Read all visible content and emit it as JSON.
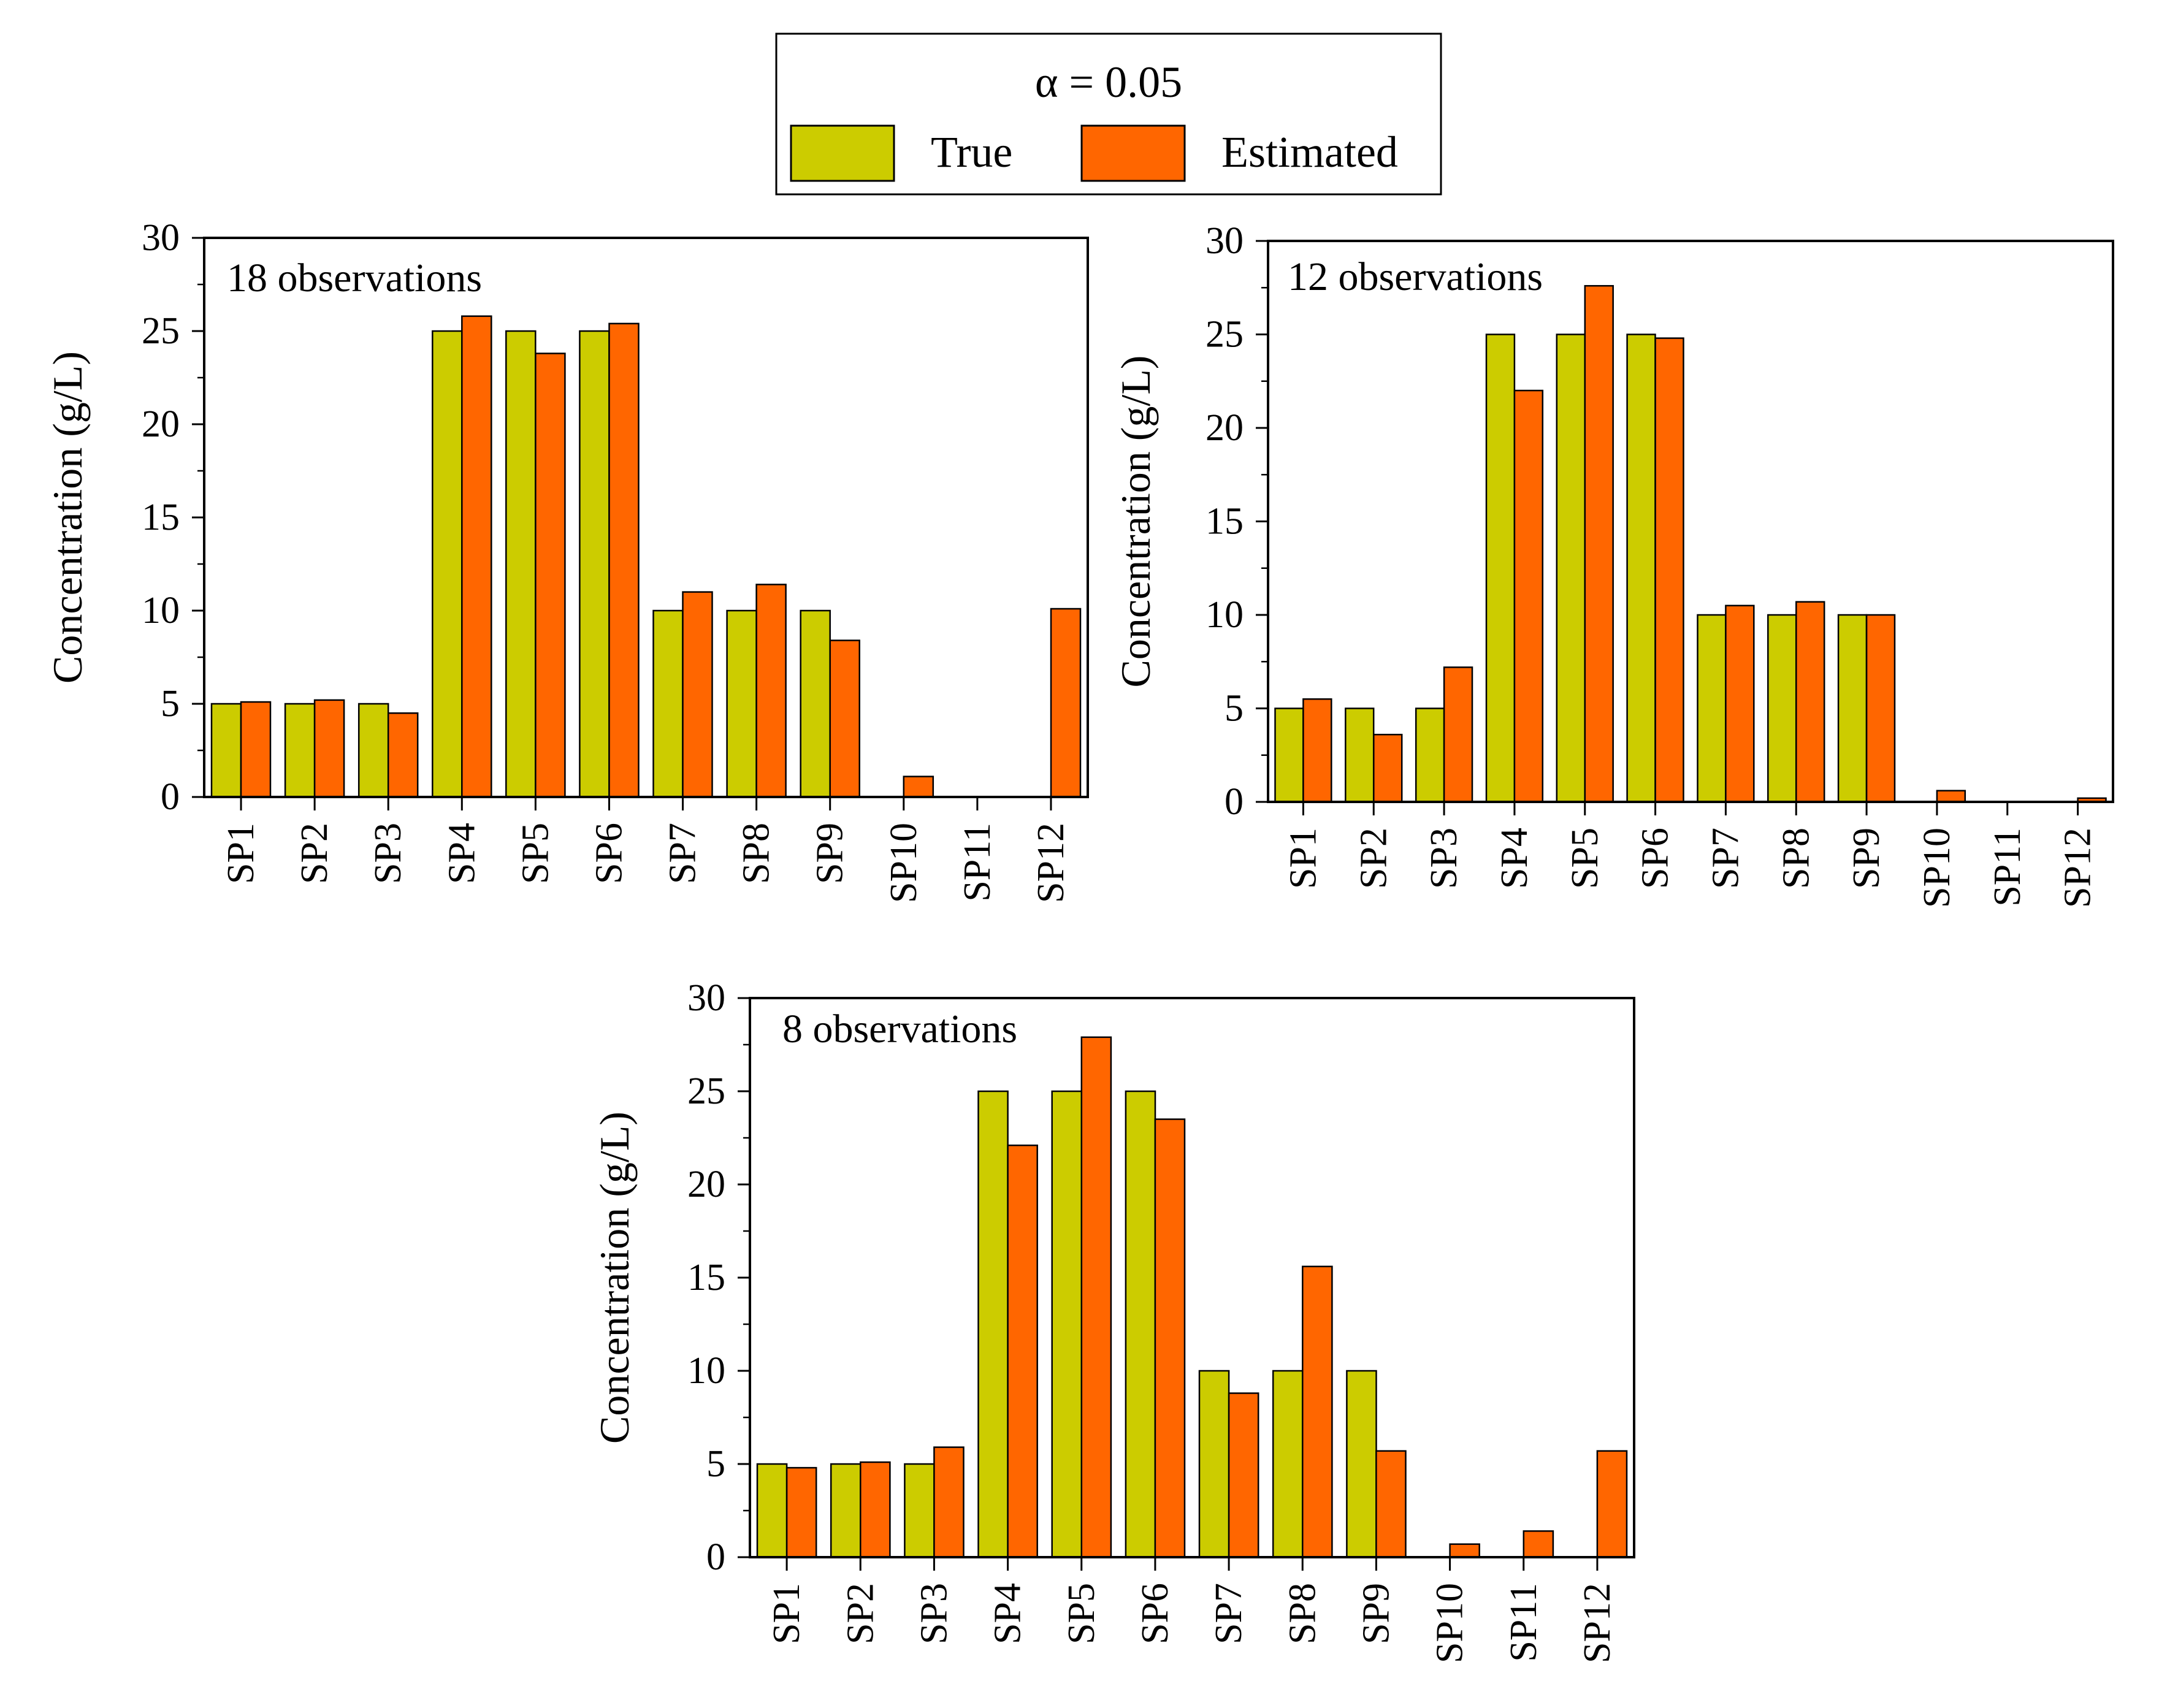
{
  "legend": {
    "title": "α = 0.05",
    "items": [
      {
        "label": "True",
        "color": "#cccc00"
      },
      {
        "label": "Estimated",
        "color": "#ff6600"
      }
    ]
  },
  "chart_data": [
    {
      "type": "bar",
      "title": "18 observations",
      "ylabel": "Concentration (g/L)",
      "xlabel": "",
      "ylim": [
        0,
        30
      ],
      "yticks": [
        0,
        5,
        10,
        15,
        20,
        25,
        30
      ],
      "categories": [
        "SP1",
        "SP2",
        "SP3",
        "SP4",
        "SP5",
        "SP6",
        "SP7",
        "SP8",
        "SP9",
        "SP10",
        "SP11",
        "SP12"
      ],
      "series": [
        {
          "name": "True",
          "values": [
            5,
            5,
            5,
            25,
            25,
            25,
            10,
            10,
            10,
            0,
            0,
            0
          ]
        },
        {
          "name": "Estimated",
          "values": [
            5.1,
            5.2,
            4.5,
            25.8,
            23.8,
            25.4,
            11.0,
            11.4,
            8.4,
            1.1,
            0,
            10.1
          ]
        }
      ]
    },
    {
      "type": "bar",
      "title": "12 observations",
      "ylabel": "Concentration (g/L)",
      "xlabel": "",
      "ylim": [
        0,
        30
      ],
      "yticks": [
        0,
        5,
        10,
        15,
        20,
        25,
        30
      ],
      "categories": [
        "SP1",
        "SP2",
        "SP3",
        "SP4",
        "SP5",
        "SP6",
        "SP7",
        "SP8",
        "SP9",
        "SP10",
        "SP11",
        "SP12"
      ],
      "series": [
        {
          "name": "True",
          "values": [
            5,
            5,
            5,
            25,
            25,
            25,
            10,
            10,
            10,
            0,
            0,
            0
          ]
        },
        {
          "name": "Estimated",
          "values": [
            5.5,
            3.6,
            7.2,
            22.0,
            27.6,
            24.8,
            10.5,
            10.7,
            10.0,
            0.6,
            0,
            0.2
          ]
        }
      ]
    },
    {
      "type": "bar",
      "title": "8 observations",
      "ylabel": "Concentration (g/L)",
      "xlabel": "",
      "ylim": [
        0,
        30
      ],
      "yticks": [
        0,
        5,
        10,
        15,
        20,
        25,
        30
      ],
      "categories": [
        "SP1",
        "SP2",
        "SP3",
        "SP4",
        "SP5",
        "SP6",
        "SP7",
        "SP8",
        "SP9",
        "SP10",
        "SP11",
        "SP12"
      ],
      "series": [
        {
          "name": "True",
          "values": [
            5,
            5,
            5,
            25,
            25,
            25,
            10,
            10,
            10,
            0,
            0,
            0
          ]
        },
        {
          "name": "Estimated",
          "values": [
            4.8,
            5.1,
            5.9,
            22.1,
            27.9,
            23.5,
            8.8,
            15.6,
            5.7,
            0.7,
            1.4,
            5.7
          ]
        }
      ]
    }
  ]
}
